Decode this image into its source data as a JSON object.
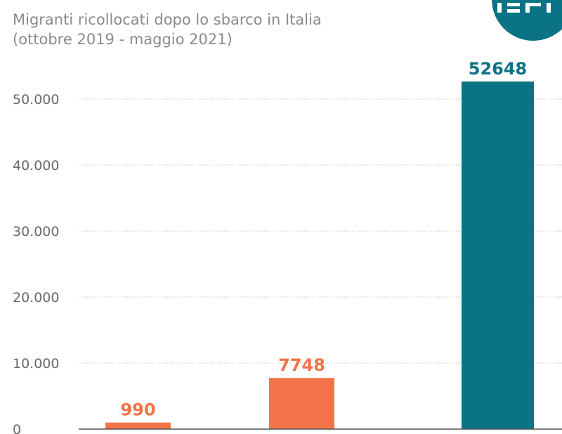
{
  "chart_data": {
    "type": "bar",
    "title": "Migranti ricollocati dopo lo sbarco in Italia",
    "subtitle": "(ottobre 2019 - maggio 2021)",
    "xlabel": "",
    "ylabel": "",
    "categories": [
      "",
      "",
      ""
    ],
    "values": [
      990,
      7748,
      52648
    ],
    "value_labels": [
      "990",
      "7748",
      "52648"
    ],
    "bar_colors": [
      "#f47349",
      "#f47349",
      "#0a7385"
    ],
    "ylim": [
      0,
      55000
    ],
    "yticks": [
      0,
      10000,
      20000,
      30000,
      40000,
      50000
    ],
    "ytick_labels": [
      "0",
      "10.000",
      "20.000",
      "30.000",
      "40.000",
      "50.000"
    ],
    "grid": true,
    "legend": "none"
  },
  "colors": {
    "orange": "#f47349",
    "teal": "#0a7385",
    "text": "#6a6a6a",
    "grid": "#bdbdbd"
  },
  "logo": {
    "icon": "ispi-logo-icon"
  }
}
